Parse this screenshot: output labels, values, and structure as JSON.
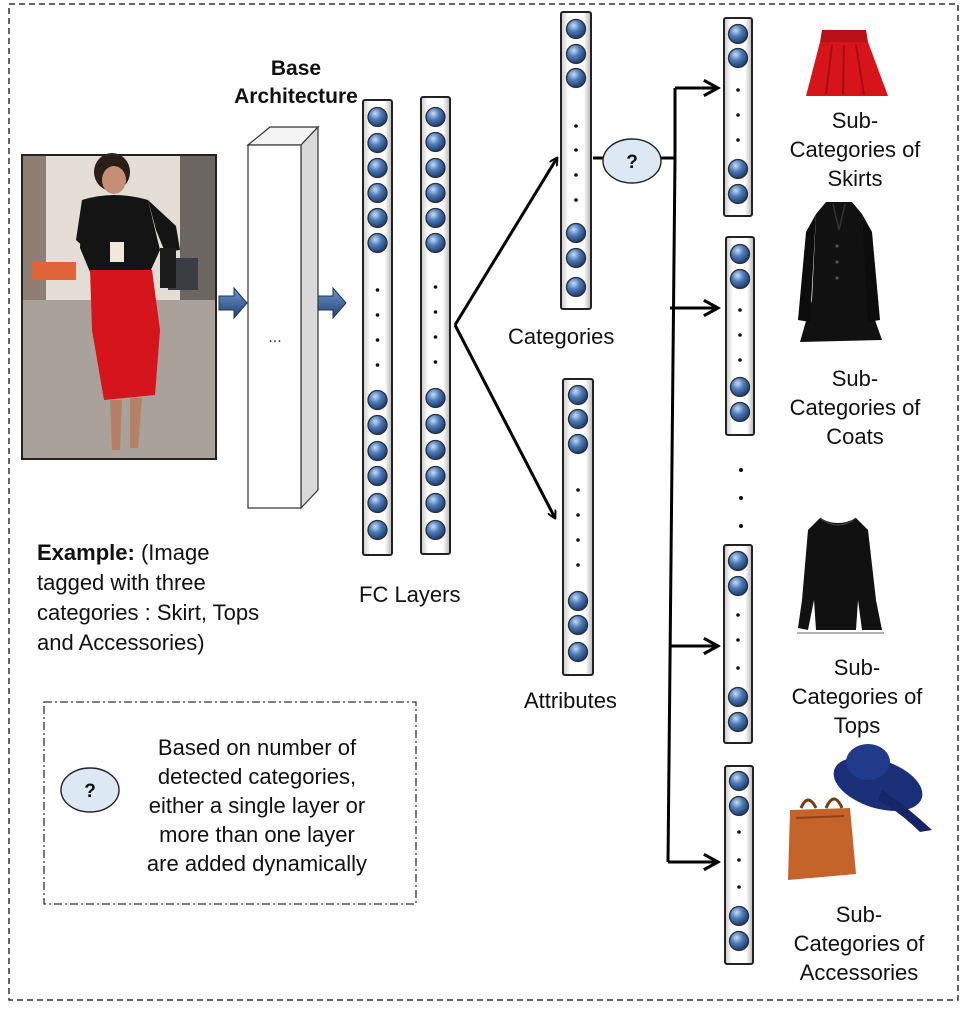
{
  "base_architecture": {
    "line1": "Base",
    "line2": "Architecture",
    "ellipsis": "..."
  },
  "fc_layers_label": "FC Layers",
  "categories_label": "Categories",
  "attributes_label": "Attributes",
  "decision_node_symbol": "?",
  "example": {
    "bold": "Example:",
    "rest_line1": "(Image",
    "line2": "tagged with three",
    "line3": "categories : Skirt, Tops",
    "line4": "and Accessories)"
  },
  "legend": {
    "symbol": "?",
    "lines": [
      "Based on number of",
      "detected categories,",
      "either a single layer or",
      "more than one layer",
      "are added dynamically"
    ]
  },
  "subcategories": [
    {
      "line1": "Sub-",
      "line2": "Categories of",
      "line3": "Skirts"
    },
    {
      "line1": "Sub-",
      "line2": "Categories of",
      "line3": "Coats"
    },
    {
      "line1": "Sub-",
      "line2": "Categories of",
      "line3": "Tops"
    },
    {
      "line1": "Sub-",
      "line2": "Categories of",
      "line3": "Accessories"
    }
  ],
  "colors": {
    "node": "#4a78b4",
    "node_dark": "#1f3a66",
    "decision_fill": "#dde8f5",
    "skirt": "#d8141b",
    "hat": "#1a2f78",
    "bag": "#c4632a",
    "garment": "#111111"
  }
}
